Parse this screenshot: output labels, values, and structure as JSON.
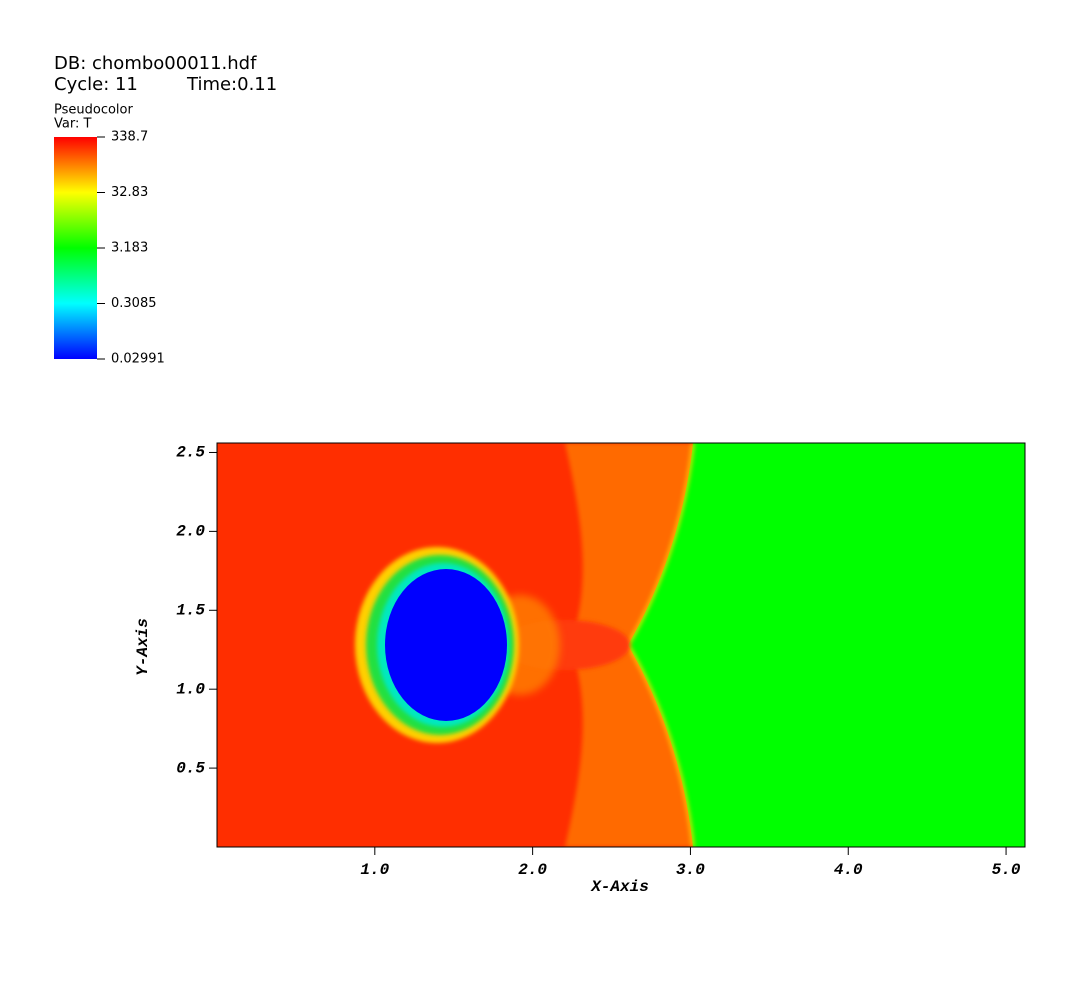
{
  "chart_data": {
    "type": "pseudocolor",
    "database": "DB: chombo00011.hdf",
    "cycle": "Cycle: 11",
    "time": "Time:0.11",
    "plot_label": "Pseudocolor",
    "variable": "Var: T",
    "xlabel": "X-Axis",
    "ylabel": "Y-Axis",
    "xlim": [
      0,
      5.12
    ],
    "ylim": [
      0,
      2.56
    ],
    "xticks": [
      {
        "value": 1,
        "label": "1.0"
      },
      {
        "value": 2,
        "label": "2.0"
      },
      {
        "value": 3,
        "label": "3.0"
      },
      {
        "value": 4,
        "label": "4.0"
      },
      {
        "value": 5,
        "label": "5.0"
      }
    ],
    "yticks": [
      0.5,
      {
        "value": 1,
        "label": "1.0"
      },
      {
        "value": 1.5,
        "label": "1.5"
      },
      {
        "value": 2,
        "label": "2.0"
      },
      {
        "value": 2.5,
        "label": "2.5"
      }
    ],
    "colorbar": {
      "log": true,
      "clim": [
        0.02991,
        338.7
      ],
      "ticks": [
        338.7,
        32.83,
        3.183,
        0.3085,
        0.02991
      ],
      "colors": [
        "#0000ff",
        "#00ffff",
        "#00ff00",
        "#ffff00",
        "#ff0000"
      ]
    }
  }
}
